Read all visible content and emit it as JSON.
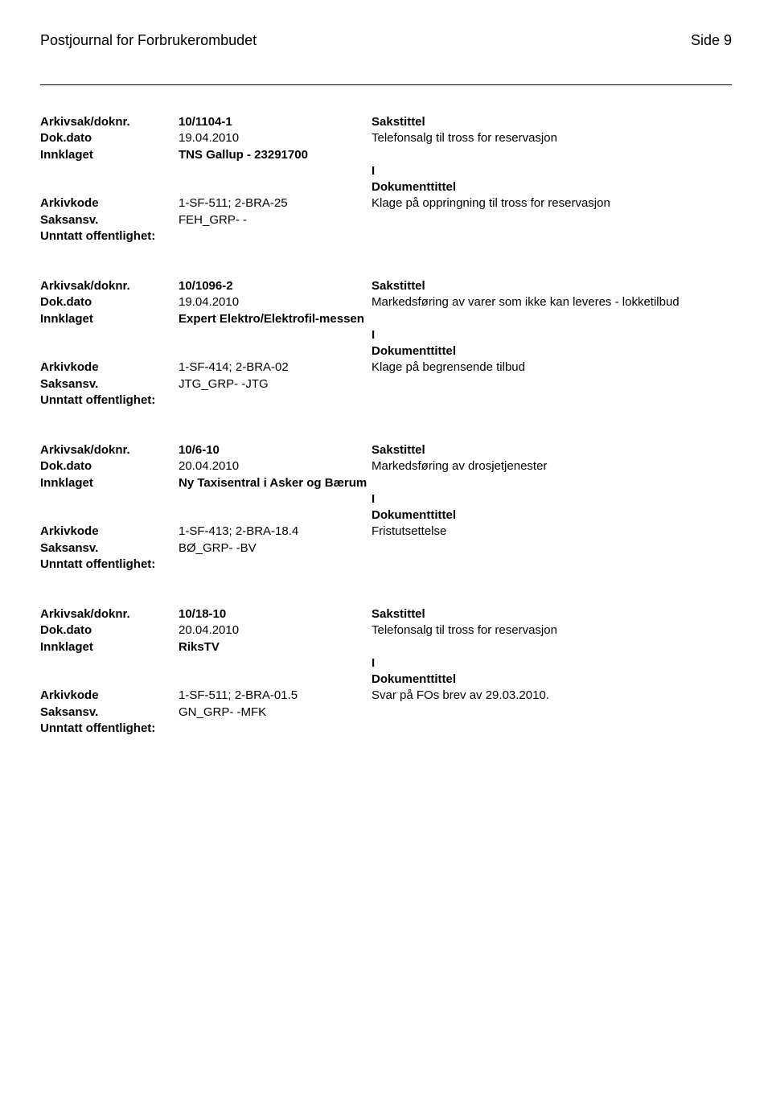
{
  "header": {
    "title": "Postjournal for Forbrukerombudet",
    "page": "Side 9"
  },
  "labels": {
    "arkivsak": "Arkivsak/doknr.",
    "dokdato": "Dok.dato",
    "innklaget": "Innklaget",
    "arkivkode": "Arkivkode",
    "saksansv": "Saksansv.",
    "unntatt": "Unntatt offentlighet:",
    "sakstittel": "Sakstittel",
    "dokumenttittel": "Dokumenttittel"
  },
  "entries": [
    {
      "arkivsak": "10/1104-1",
      "dokdato": "19.04.2010",
      "sakstittel_text": "Telefonsalg til tross for reservasjon",
      "innklaget": "TNS Gallup - 23291700",
      "type": "I",
      "arkivkode": "1-SF-511; 2-BRA-25",
      "dokumenttittel_text": "Klage på oppringning til tross for reservasjon",
      "saksansv": "FEH_GRP- -",
      "unntatt": ""
    },
    {
      "arkivsak": "10/1096-2",
      "dokdato": "19.04.2010",
      "sakstittel_text": "Markedsføring av varer som ikke kan leveres - lokketilbud",
      "innklaget": "Expert Elektro/Elektrofil-messen",
      "type": "I",
      "arkivkode": "1-SF-414; 2-BRA-02",
      "dokumenttittel_text": "Klage på begrensende tilbud",
      "saksansv": "JTG_GRP- -JTG",
      "unntatt": ""
    },
    {
      "arkivsak": "10/6-10",
      "dokdato": "20.04.2010",
      "sakstittel_text": "Markedsføring av drosjetjenester",
      "innklaget": "Ny Taxisentral i Asker og Bærum",
      "type": "I",
      "arkivkode": "1-SF-413; 2-BRA-18.4",
      "dokumenttittel_text": "Fristutsettelse",
      "saksansv": "BØ_GRP- -BV",
      "unntatt": ""
    },
    {
      "arkivsak": "10/18-10",
      "dokdato": "20.04.2010",
      "sakstittel_text": "Telefonsalg til tross for reservasjon",
      "innklaget": "RiksTV",
      "type": "I",
      "arkivkode": "1-SF-511; 2-BRA-01.5",
      "dokumenttittel_text": "Svar på FOs brev av 29.03.2010.",
      "saksansv": "GN_GRP- -MFK",
      "unntatt": ""
    }
  ]
}
